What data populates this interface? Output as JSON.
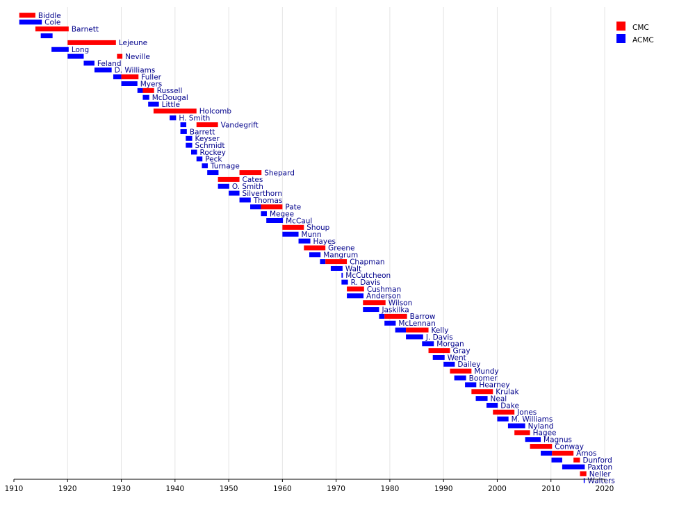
{
  "chart_data": {
    "type": "timeline",
    "xlim": [
      1910,
      2020
    ],
    "xticks": [
      1910,
      1920,
      1930,
      1940,
      1950,
      1960,
      1970,
      1980,
      1990,
      2000,
      2010,
      2020
    ],
    "grid": true,
    "legend_position": "top-right",
    "legend": [
      {
        "key": "cmc",
        "label": "CMC",
        "color": "#ff0000"
      },
      {
        "key": "acmc",
        "label": "ACMC",
        "color": "#0000ff"
      }
    ],
    "rows": [
      {
        "name": "Biddle",
        "segments": [
          {
            "role": "cmc",
            "start": 1911.0,
            "end": 1914.0
          }
        ]
      },
      {
        "name": "Cole",
        "segments": [
          {
            "role": "acmc",
            "start": 1911.0,
            "end": 1915.2
          }
        ]
      },
      {
        "name": "Barnett",
        "segments": [
          {
            "role": "cmc",
            "start": 1914.0,
            "end": 1920.2
          }
        ]
      },
      {
        "name": "",
        "segments": [
          {
            "role": "acmc",
            "start": 1915.0,
            "end": 1917.2
          }
        ]
      },
      {
        "name": "Lejeune",
        "segments": [
          {
            "role": "cmc",
            "start": 1920.0,
            "end": 1929.0
          }
        ]
      },
      {
        "name": "Long",
        "segments": [
          {
            "role": "acmc",
            "start": 1917.0,
            "end": 1920.2
          }
        ]
      },
      {
        "name": "Neville",
        "segments": [
          {
            "role": "acmc",
            "start": 1920.0,
            "end": 1923.0
          },
          {
            "role": "cmc",
            "start": 1929.2,
            "end": 1930.2
          }
        ]
      },
      {
        "name": "Feland",
        "segments": [
          {
            "role": "acmc",
            "start": 1923.0,
            "end": 1925.0
          }
        ]
      },
      {
        "name": "D. Williams",
        "segments": [
          {
            "role": "acmc",
            "start": 1925.0,
            "end": 1928.2
          }
        ]
      },
      {
        "name": "Fuller",
        "segments": [
          {
            "role": "acmc",
            "start": 1928.5,
            "end": 1930.0
          },
          {
            "role": "cmc",
            "start": 1930.0,
            "end": 1933.2
          }
        ]
      },
      {
        "name": "Myers",
        "segments": [
          {
            "role": "acmc",
            "start": 1930.0,
            "end": 1933.0
          }
        ]
      },
      {
        "name": "Russell",
        "segments": [
          {
            "role": "acmc",
            "start": 1933.0,
            "end": 1934.0
          },
          {
            "role": "cmc",
            "start": 1934.0,
            "end": 1936.1
          }
        ]
      },
      {
        "name": "McDougal",
        "segments": [
          {
            "role": "acmc",
            "start": 1934.0,
            "end": 1935.2
          }
        ]
      },
      {
        "name": "Little",
        "segments": [
          {
            "role": "acmc",
            "start": 1935.0,
            "end": 1937.0
          }
        ]
      },
      {
        "name": "Holcomb",
        "segments": [
          {
            "role": "cmc",
            "start": 1936.0,
            "end": 1944.0
          }
        ]
      },
      {
        "name": "H. Smith",
        "segments": [
          {
            "role": "acmc",
            "start": 1939.0,
            "end": 1940.2
          }
        ]
      },
      {
        "name": "Vandegrift",
        "segments": [
          {
            "role": "acmc",
            "start": 1941.0,
            "end": 1942.1
          },
          {
            "role": "cmc",
            "start": 1944.0,
            "end": 1948.0
          }
        ]
      },
      {
        "name": "Barrett",
        "segments": [
          {
            "role": "acmc",
            "start": 1941.0,
            "end": 1942.2
          }
        ]
      },
      {
        "name": "Keyser",
        "segments": [
          {
            "role": "acmc",
            "start": 1942.0,
            "end": 1943.2
          }
        ]
      },
      {
        "name": "Schmidt",
        "segments": [
          {
            "role": "acmc",
            "start": 1942.0,
            "end": 1943.2
          }
        ]
      },
      {
        "name": "Rockey",
        "segments": [
          {
            "role": "acmc",
            "start": 1943.0,
            "end": 1944.1
          }
        ]
      },
      {
        "name": "Peck",
        "segments": [
          {
            "role": "acmc",
            "start": 1944.0,
            "end": 1945.1
          }
        ]
      },
      {
        "name": "Turnage",
        "segments": [
          {
            "role": "acmc",
            "start": 1945.0,
            "end": 1946.1
          }
        ]
      },
      {
        "name": "Shepard",
        "segments": [
          {
            "role": "acmc",
            "start": 1946.0,
            "end": 1948.1
          },
          {
            "role": "cmc",
            "start": 1952.0,
            "end": 1956.1
          }
        ]
      },
      {
        "name": "Cates",
        "segments": [
          {
            "role": "cmc",
            "start": 1948.0,
            "end": 1952.0
          }
        ]
      },
      {
        "name": "O. Smith",
        "segments": [
          {
            "role": "acmc",
            "start": 1948.0,
            "end": 1950.1
          }
        ]
      },
      {
        "name": "Silverthorn",
        "segments": [
          {
            "role": "acmc",
            "start": 1950.0,
            "end": 1952.0
          }
        ]
      },
      {
        "name": "Thomas",
        "segments": [
          {
            "role": "acmc",
            "start": 1952.0,
            "end": 1954.1
          }
        ]
      },
      {
        "name": "Pate",
        "segments": [
          {
            "role": "acmc",
            "start": 1954.0,
            "end": 1956.0
          },
          {
            "role": "cmc",
            "start": 1956.0,
            "end": 1960.0
          }
        ]
      },
      {
        "name": "Megee",
        "segments": [
          {
            "role": "acmc",
            "start": 1956.0,
            "end": 1957.1
          }
        ]
      },
      {
        "name": "McCaul",
        "segments": [
          {
            "role": "acmc",
            "start": 1957.0,
            "end": 1960.1
          }
        ]
      },
      {
        "name": "Shoup",
        "segments": [
          {
            "role": "cmc",
            "start": 1960.0,
            "end": 1964.0
          }
        ]
      },
      {
        "name": "Munn",
        "segments": [
          {
            "role": "acmc",
            "start": 1960.0,
            "end": 1963.0
          }
        ]
      },
      {
        "name": "Hayes",
        "segments": [
          {
            "role": "acmc",
            "start": 1963.0,
            "end": 1965.2
          }
        ]
      },
      {
        "name": "Greene",
        "segments": [
          {
            "role": "cmc",
            "start": 1964.0,
            "end": 1968.0
          }
        ]
      },
      {
        "name": "Mangrum",
        "segments": [
          {
            "role": "acmc",
            "start": 1965.0,
            "end": 1967.1
          }
        ]
      },
      {
        "name": "Chapman",
        "segments": [
          {
            "role": "acmc",
            "start": 1967.0,
            "end": 1968.0
          },
          {
            "role": "cmc",
            "start": 1968.0,
            "end": 1972.0
          }
        ]
      },
      {
        "name": "Walt",
        "segments": [
          {
            "role": "acmc",
            "start": 1969.0,
            "end": 1971.2
          }
        ]
      },
      {
        "name": "McCutcheon",
        "segments": [
          {
            "role": "acmc",
            "start": 1971.0,
            "end": 1971.25
          }
        ]
      },
      {
        "name": "R. Davis",
        "segments": [
          {
            "role": "acmc",
            "start": 1971.0,
            "end": 1972.2
          }
        ]
      },
      {
        "name": "Cushman",
        "segments": [
          {
            "role": "cmc",
            "start": 1972.0,
            "end": 1975.2
          }
        ]
      },
      {
        "name": "Anderson",
        "segments": [
          {
            "role": "acmc",
            "start": 1972.0,
            "end": 1975.1
          }
        ]
      },
      {
        "name": "Wilson",
        "segments": [
          {
            "role": "cmc",
            "start": 1975.0,
            "end": 1979.2
          }
        ]
      },
      {
        "name": "Jaskilka",
        "segments": [
          {
            "role": "acmc",
            "start": 1975.0,
            "end": 1978.0
          }
        ]
      },
      {
        "name": "Barrow",
        "segments": [
          {
            "role": "acmc",
            "start": 1978.0,
            "end": 1979.0
          },
          {
            "role": "cmc",
            "start": 1979.0,
            "end": 1983.2
          }
        ]
      },
      {
        "name": "McLennan",
        "segments": [
          {
            "role": "acmc",
            "start": 1979.0,
            "end": 1981.1
          }
        ]
      },
      {
        "name": "Kelly",
        "segments": [
          {
            "role": "acmc",
            "start": 1981.0,
            "end": 1983.0
          },
          {
            "role": "cmc",
            "start": 1983.0,
            "end": 1987.2
          }
        ]
      },
      {
        "name": "J. Davis",
        "segments": [
          {
            "role": "acmc",
            "start": 1983.0,
            "end": 1986.2
          }
        ]
      },
      {
        "name": "Morgan",
        "segments": [
          {
            "role": "acmc",
            "start": 1986.0,
            "end": 1988.2
          }
        ]
      },
      {
        "name": "Gray",
        "segments": [
          {
            "role": "cmc",
            "start": 1987.2,
            "end": 1991.2
          }
        ]
      },
      {
        "name": "Went",
        "segments": [
          {
            "role": "acmc",
            "start": 1988.0,
            "end": 1990.2
          }
        ]
      },
      {
        "name": "Dailey",
        "segments": [
          {
            "role": "acmc",
            "start": 1990.0,
            "end": 1992.1
          }
        ]
      },
      {
        "name": "Mundy",
        "segments": [
          {
            "role": "cmc",
            "start": 1991.2,
            "end": 1995.2
          }
        ]
      },
      {
        "name": "Boomer",
        "segments": [
          {
            "role": "acmc",
            "start": 1992.0,
            "end": 1994.2
          }
        ]
      },
      {
        "name": "Hearney",
        "segments": [
          {
            "role": "acmc",
            "start": 1994.0,
            "end": 1996.1
          }
        ]
      },
      {
        "name": "Krulak",
        "segments": [
          {
            "role": "cmc",
            "start": 1995.2,
            "end": 1999.2
          }
        ]
      },
      {
        "name": "Neal",
        "segments": [
          {
            "role": "acmc",
            "start": 1996.0,
            "end": 1998.2
          }
        ]
      },
      {
        "name": "Dake",
        "segments": [
          {
            "role": "acmc",
            "start": 1998.0,
            "end": 2000.1
          }
        ]
      },
      {
        "name": "Jones",
        "segments": [
          {
            "role": "cmc",
            "start": 1999.2,
            "end": 2003.2
          }
        ]
      },
      {
        "name": "M. Williams",
        "segments": [
          {
            "role": "acmc",
            "start": 2000.0,
            "end": 2002.1
          }
        ]
      },
      {
        "name": "Nyland",
        "segments": [
          {
            "role": "acmc",
            "start": 2002.0,
            "end": 2005.2
          }
        ]
      },
      {
        "name": "Hagee",
        "segments": [
          {
            "role": "cmc",
            "start": 2003.2,
            "end": 2006.1
          }
        ]
      },
      {
        "name": "Magnus",
        "segments": [
          {
            "role": "acmc",
            "start": 2005.2,
            "end": 2008.1
          }
        ]
      },
      {
        "name": "Conway",
        "segments": [
          {
            "role": "cmc",
            "start": 2006.1,
            "end": 2010.2
          }
        ]
      },
      {
        "name": "Amos",
        "segments": [
          {
            "role": "acmc",
            "start": 2008.1,
            "end": 2010.2
          },
          {
            "role": "cmc",
            "start": 2010.2,
            "end": 2014.2
          }
        ]
      },
      {
        "name": "Dunford",
        "segments": [
          {
            "role": "acmc",
            "start": 2010.1,
            "end": 2012.1
          },
          {
            "role": "cmc",
            "start": 2014.2,
            "end": 2015.4
          }
        ]
      },
      {
        "name": "Paxton",
        "segments": [
          {
            "role": "acmc",
            "start": 2012.1,
            "end": 2016.3
          }
        ]
      },
      {
        "name": "Neller",
        "segments": [
          {
            "role": "cmc",
            "start": 2015.4,
            "end": 2016.6
          }
        ]
      },
      {
        "name": "Walters",
        "segments": [
          {
            "role": "acmc",
            "start": 2016.1,
            "end": 2016.3
          }
        ]
      }
    ]
  }
}
